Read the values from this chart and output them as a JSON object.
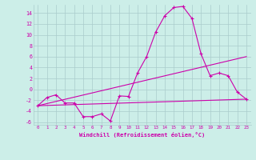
{
  "xlabel": "Windchill (Refroidissement éolien,°C)",
  "background_color": "#cceee8",
  "grid_color": "#aacccc",
  "line_color": "#cc00aa",
  "xlim": [
    -0.5,
    23.5
  ],
  "ylim": [
    -6.5,
    15.5
  ],
  "xticks": [
    0,
    1,
    2,
    3,
    4,
    5,
    6,
    7,
    8,
    9,
    10,
    11,
    12,
    13,
    14,
    15,
    16,
    17,
    18,
    19,
    20,
    21,
    22,
    23
  ],
  "yticks": [
    -6,
    -4,
    -2,
    0,
    2,
    4,
    6,
    8,
    10,
    12,
    14
  ],
  "series1_x": [
    0,
    1,
    2,
    3,
    4,
    5,
    6,
    7,
    8,
    9,
    10,
    11,
    12,
    13,
    14,
    15,
    16,
    17,
    18,
    19,
    20,
    21,
    22,
    23
  ],
  "series1_y": [
    -3,
    -1.5,
    -1,
    -2.5,
    -2.5,
    -5,
    -5,
    -4.5,
    -5.8,
    -1.2,
    -1.3,
    3,
    6,
    10.5,
    13.5,
    15,
    15.2,
    13,
    6.5,
    2.5,
    3,
    2.5,
    -0.5,
    -1.8
  ],
  "series2_x": [
    0,
    23
  ],
  "series2_y": [
    -3.0,
    -1.8
  ],
  "series3_x": [
    0,
    23
  ],
  "series3_y": [
    -3.0,
    6.0
  ],
  "marker": "+"
}
